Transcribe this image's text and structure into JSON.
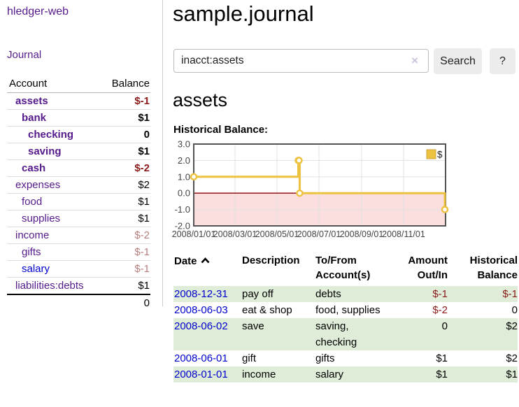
{
  "app": {
    "title": "hledger-web"
  },
  "sidebar": {
    "journal_link": "Journal",
    "accounts_table": {
      "headers": {
        "account": "Account",
        "balance": "Balance"
      },
      "rows": [
        {
          "name": "assets",
          "indent": 1,
          "bold": true,
          "balance": "$-1",
          "balance_style": "neg",
          "link_style": "visited"
        },
        {
          "name": "bank",
          "indent": 2,
          "bold": true,
          "balance": "$1",
          "balance_style": "normal",
          "link_style": "visited"
        },
        {
          "name": "checking",
          "indent": 3,
          "bold": true,
          "balance": "0",
          "balance_style": "normal",
          "link_style": "visited"
        },
        {
          "name": "saving",
          "indent": 3,
          "bold": true,
          "balance": "$1",
          "balance_style": "normal",
          "link_style": "visited"
        },
        {
          "name": "cash",
          "indent": 2,
          "bold": true,
          "balance": "$-2",
          "balance_style": "neg",
          "link_style": "visited"
        },
        {
          "name": "expenses",
          "indent": 1,
          "bold": false,
          "balance": "$2",
          "balance_style": "normal",
          "link_style": "visited"
        },
        {
          "name": "food",
          "indent": 2,
          "bold": false,
          "balance": "$1",
          "balance_style": "normal",
          "link_style": "visited"
        },
        {
          "name": "supplies",
          "indent": 2,
          "bold": false,
          "balance": "$1",
          "balance_style": "normal",
          "link_style": "visited"
        },
        {
          "name": "income",
          "indent": 1,
          "bold": false,
          "balance": "$-2",
          "balance_style": "neg-faded",
          "link_style": "visited"
        },
        {
          "name": "gifts",
          "indent": 2,
          "bold": false,
          "balance": "$-1",
          "balance_style": "neg-faded",
          "link_style": "visited"
        },
        {
          "name": "salary",
          "indent": 2,
          "bold": false,
          "balance": "$-1",
          "balance_style": "neg-faded",
          "link_style": "unvisited"
        },
        {
          "name": "liabilities:debts",
          "indent": 1,
          "bold": false,
          "balance": "$1",
          "balance_style": "normal",
          "link_style": "visited"
        }
      ],
      "total": "0"
    }
  },
  "header": {
    "title": "sample.journal"
  },
  "search": {
    "value": "inacct:assets",
    "clear_icon": "×",
    "button_label": "Search",
    "help_label": "?"
  },
  "account_page": {
    "heading": "assets",
    "chart_label": "Historical Balance:"
  },
  "chart_data": {
    "type": "line",
    "step": true,
    "title": "Historical Balance:",
    "series": [
      {
        "name": "$",
        "points": [
          [
            "2008-01-01",
            1
          ],
          [
            "2008-06-01",
            2
          ],
          [
            "2008-06-02",
            2
          ],
          [
            "2008-06-03",
            0
          ],
          [
            "2008-12-31",
            -1
          ]
        ]
      }
    ],
    "x_range": [
      "2008-01-01",
      "2009-01-01"
    ],
    "ylim": [
      -2,
      3
    ],
    "y_ticks": [
      {
        "value": 3,
        "label": "3.0"
      },
      {
        "value": 2,
        "label": "2.0"
      },
      {
        "value": 1,
        "label": "1.0"
      },
      {
        "value": 0,
        "label": "0.0"
      },
      {
        "value": -1,
        "label": "-1.0"
      },
      {
        "value": -2,
        "label": "-2.0"
      }
    ],
    "x_ticks": [
      {
        "date": "2008-01-01",
        "label": "2008/01/01"
      },
      {
        "date": "2008-03-01",
        "label": "2008/03/01"
      },
      {
        "date": "2008-05-01",
        "label": "2008/05/01"
      },
      {
        "date": "2008-07-01",
        "label": "2008/07/01"
      },
      {
        "date": "2008-09-01",
        "label": "2008/09/01"
      },
      {
        "date": "2008-11-01",
        "label": "2008/11/01"
      }
    ],
    "legend": {
      "label": "$",
      "position": "top-right"
    },
    "grid": true,
    "colors": {
      "line": "#edc240",
      "marker_fill": "#ffffff",
      "legend_box_border": "#cda63a",
      "negative_fill": "#fbdede",
      "zero_line": "#8b0000",
      "grid": "#e2e2e2",
      "border": "#545454",
      "axis_text": "#444444"
    }
  },
  "transactions_table": {
    "headers": {
      "date": "Date",
      "sort_icon": "chevron-up",
      "description": "Description",
      "accounts": "To/From Account(s)",
      "amount": "Amount Out/In",
      "historical": "Historical Balance"
    },
    "rows": [
      {
        "date": "2008-12-31",
        "description": "pay off",
        "accounts": "debts",
        "amount": "$-1",
        "amount_style": "neg",
        "balance": "$-1",
        "balance_style": "neg",
        "shaded": true
      },
      {
        "date": "2008-06-03",
        "description": "eat & shop",
        "accounts": "food, supplies",
        "amount": "$-2",
        "amount_style": "neg",
        "balance": "0",
        "balance_style": "normal",
        "shaded": false
      },
      {
        "date": "2008-06-02",
        "description": "save",
        "accounts": "saving, checking",
        "amount": "0",
        "amount_style": "normal",
        "balance": "$2",
        "balance_style": "normal",
        "shaded": true
      },
      {
        "date": "2008-06-01",
        "description": "gift",
        "accounts": "gifts",
        "amount": "$1",
        "amount_style": "normal",
        "balance": "$2",
        "balance_style": "normal",
        "shaded": false
      },
      {
        "date": "2008-01-01",
        "description": "income",
        "accounts": "salary",
        "amount": "$1",
        "amount_style": "normal",
        "balance": "$1",
        "balance_style": "normal",
        "shaded": true
      }
    ]
  }
}
